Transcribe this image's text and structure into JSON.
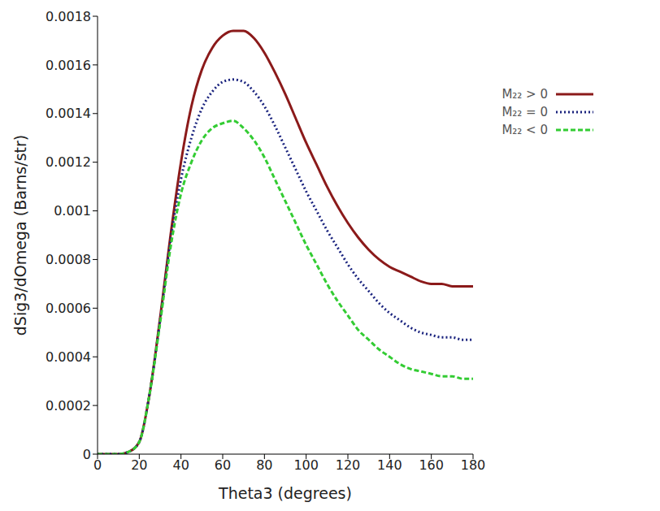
{
  "chart_data": {
    "type": "line",
    "x_label": "Theta3 (degrees)",
    "y_label": "dSig3/dOmega (Barns/str)",
    "x": [
      0,
      5,
      10,
      15,
      20,
      25,
      30,
      35,
      40,
      45,
      50,
      55,
      60,
      65,
      70,
      75,
      80,
      85,
      90,
      95,
      100,
      105,
      110,
      115,
      120,
      125,
      130,
      135,
      140,
      145,
      150,
      155,
      160,
      165,
      170,
      175,
      180
    ],
    "series": [
      {
        "name": "M₂₂ > 0",
        "color": "#8b1a1a",
        "line_style": "solid",
        "values": [
          0,
          0,
          0,
          1e-05,
          5e-05,
          0.00025,
          0.00056,
          0.0009,
          0.0012,
          0.00143,
          0.00158,
          0.00167,
          0.00172,
          0.00174,
          0.00174,
          0.00171,
          0.00165,
          0.00157,
          0.00148,
          0.00138,
          0.00128,
          0.00119,
          0.0011,
          0.00102,
          0.00095,
          0.00089,
          0.00084,
          0.0008,
          0.00077,
          0.00075,
          0.00073,
          0.00071,
          0.0007,
          0.0007,
          0.00069,
          0.00069,
          0.00069
        ]
      },
      {
        "name": "M₂₂ = 0",
        "color": "#1a237e",
        "line_style": "dotted",
        "values": [
          0,
          0,
          0,
          1e-05,
          5e-05,
          0.00025,
          0.00055,
          0.00088,
          0.00113,
          0.0013,
          0.00142,
          0.00149,
          0.00153,
          0.00154,
          0.00153,
          0.00149,
          0.00143,
          0.00135,
          0.00126,
          0.00117,
          0.00108,
          0.001,
          0.00092,
          0.00085,
          0.00078,
          0.00072,
          0.00067,
          0.00062,
          0.00058,
          0.00055,
          0.00052,
          0.0005,
          0.00049,
          0.00048,
          0.00048,
          0.00047,
          0.00047
        ]
      },
      {
        "name": "M₂₂ < 0",
        "color": "#33cc33",
        "line_style": "dashed",
        "values": [
          0,
          0,
          0,
          1e-05,
          5e-05,
          0.00025,
          0.00054,
          0.00085,
          0.00107,
          0.0012,
          0.00129,
          0.00134,
          0.00136,
          0.00137,
          0.00134,
          0.00129,
          0.00122,
          0.00113,
          0.00104,
          0.00095,
          0.00086,
          0.00078,
          0.0007,
          0.00063,
          0.00057,
          0.00051,
          0.00047,
          0.00043,
          0.0004,
          0.00037,
          0.00035,
          0.00034,
          0.00033,
          0.00032,
          0.00032,
          0.00031,
          0.00031
        ]
      }
    ],
    "xlim": [
      0,
      180
    ],
    "xticks": [
      0,
      20,
      40,
      60,
      80,
      100,
      120,
      140,
      160,
      180
    ],
    "ylim": [
      0,
      0.0018
    ],
    "yticks": [
      0,
      0.0002,
      0.0004,
      0.0006,
      0.0008,
      0.001,
      0.0012,
      0.0014,
      0.0016,
      0.0018
    ],
    "grid": false,
    "legend": "upper right"
  }
}
